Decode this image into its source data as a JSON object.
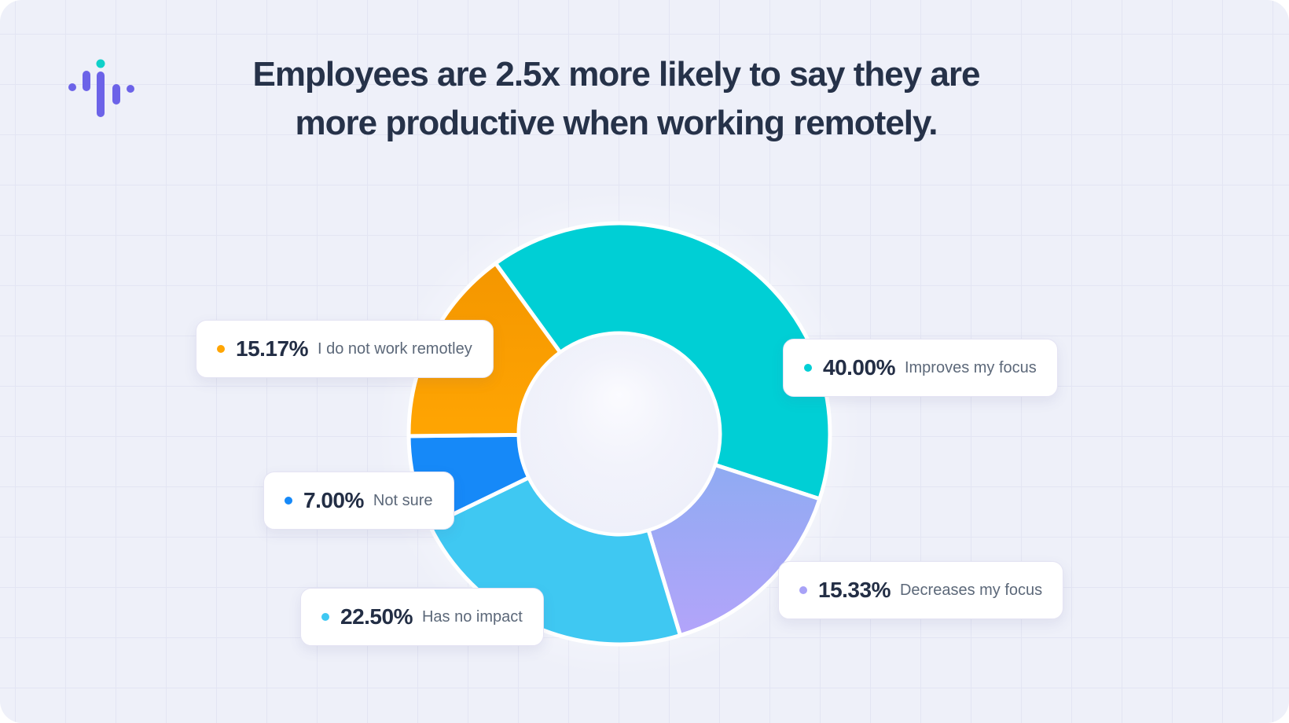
{
  "page": {
    "background_color": "#eef0f9",
    "grid_color": "#e3e5f3"
  },
  "header": {
    "title_line1": "Employees are 2.5x more likely to say they are",
    "title_line2": "more productive when working remotely.",
    "title_color": "#263249"
  },
  "logo": {
    "name": "soundwave-logo",
    "purple": "#6c63e8",
    "teal": "#0fd0c9"
  },
  "chart_data": {
    "type": "pie",
    "variant": "donut",
    "title": "Remote work impact on productivity/focus",
    "start_angle_deg": -36,
    "legend_position": "callout-cards",
    "grid": false,
    "slices": [
      {
        "label": "Improves my focus",
        "value": 40.0,
        "pct_text": "40.00%",
        "color": "#00CFD5"
      },
      {
        "label": "Decreases my focus",
        "value": 15.33,
        "pct_text": "15.33%",
        "color": "#A8A2F7",
        "gradient": [
          "#8FABF2",
          "#B3A4FA"
        ]
      },
      {
        "label": "Has no impact",
        "value": 22.5,
        "pct_text": "22.50%",
        "color": "#3FC8F2"
      },
      {
        "label": "Not sure",
        "value": 7.0,
        "pct_text": "7.00%",
        "color": "#1689F8"
      },
      {
        "label": "I do not work remotley",
        "value": 15.17,
        "pct_text": "15.17%",
        "color": "#FFA502",
        "gradient": [
          "#F49600",
          "#FFA502"
        ]
      }
    ]
  }
}
